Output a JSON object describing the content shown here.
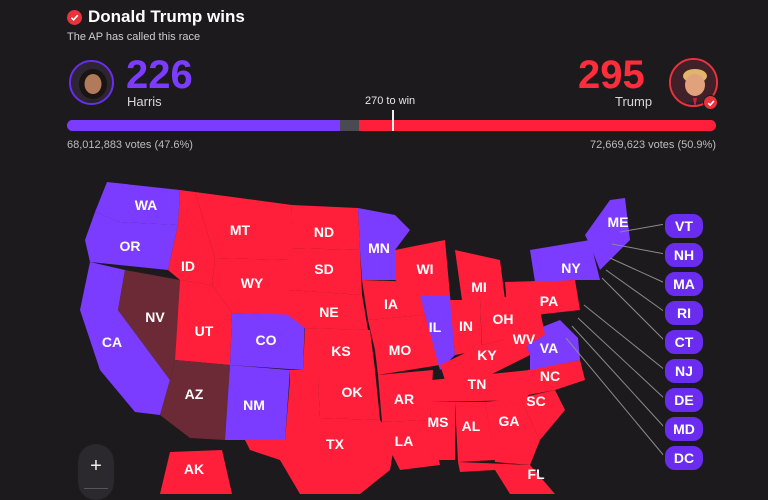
{
  "header": {
    "winner_title": "Donald Trump wins",
    "called_text": "The AP has called this race"
  },
  "harris": {
    "ev": "226",
    "name": "Harris",
    "votes": "68,012,883 votes (47.6%)",
    "color": "#7b3cff"
  },
  "trump": {
    "ev": "295",
    "name": "Trump",
    "votes": "72,669,623 votes (50.9%)",
    "color": "#ff1f3a"
  },
  "bar": {
    "to_win_label": "270 to win",
    "harris_share": 0.42,
    "trump_share": 0.55,
    "threshold": 0.502
  },
  "map": {
    "states": {
      "WA": "WA",
      "OR": "OR",
      "CA": "CA",
      "NV": "NV",
      "ID": "ID",
      "MT": "MT",
      "WY": "WY",
      "UT": "UT",
      "AZ": "AZ",
      "CO": "CO",
      "NM": "NM",
      "ND": "ND",
      "SD": "SD",
      "NE": "NE",
      "KS": "KS",
      "OK": "OK",
      "TX": "TX",
      "MN": "MN",
      "IA": "IA",
      "MO": "MO",
      "AR": "AR",
      "LA": "LA",
      "WI": "WI",
      "IL": "IL",
      "MI": "MI",
      "IN": "IN",
      "OH": "OH",
      "KY": "KY",
      "TN": "TN",
      "MS": "MS",
      "AL": "AL",
      "GA": "GA",
      "FL": "FL",
      "SC": "SC",
      "NC": "NC",
      "VA": "VA",
      "WV": "WV",
      "PA": "PA",
      "NY": "NY",
      "ME": "ME",
      "AK": "AK"
    },
    "small_states": [
      "VT",
      "NH",
      "MA",
      "RI",
      "CT",
      "NJ",
      "DE",
      "MD",
      "DC"
    ],
    "colors": {
      "dem": "#7b3cff",
      "rep": "#ff1f3a",
      "flip": "#6b2a36"
    }
  },
  "zoom": {
    "in_label": "+"
  }
}
